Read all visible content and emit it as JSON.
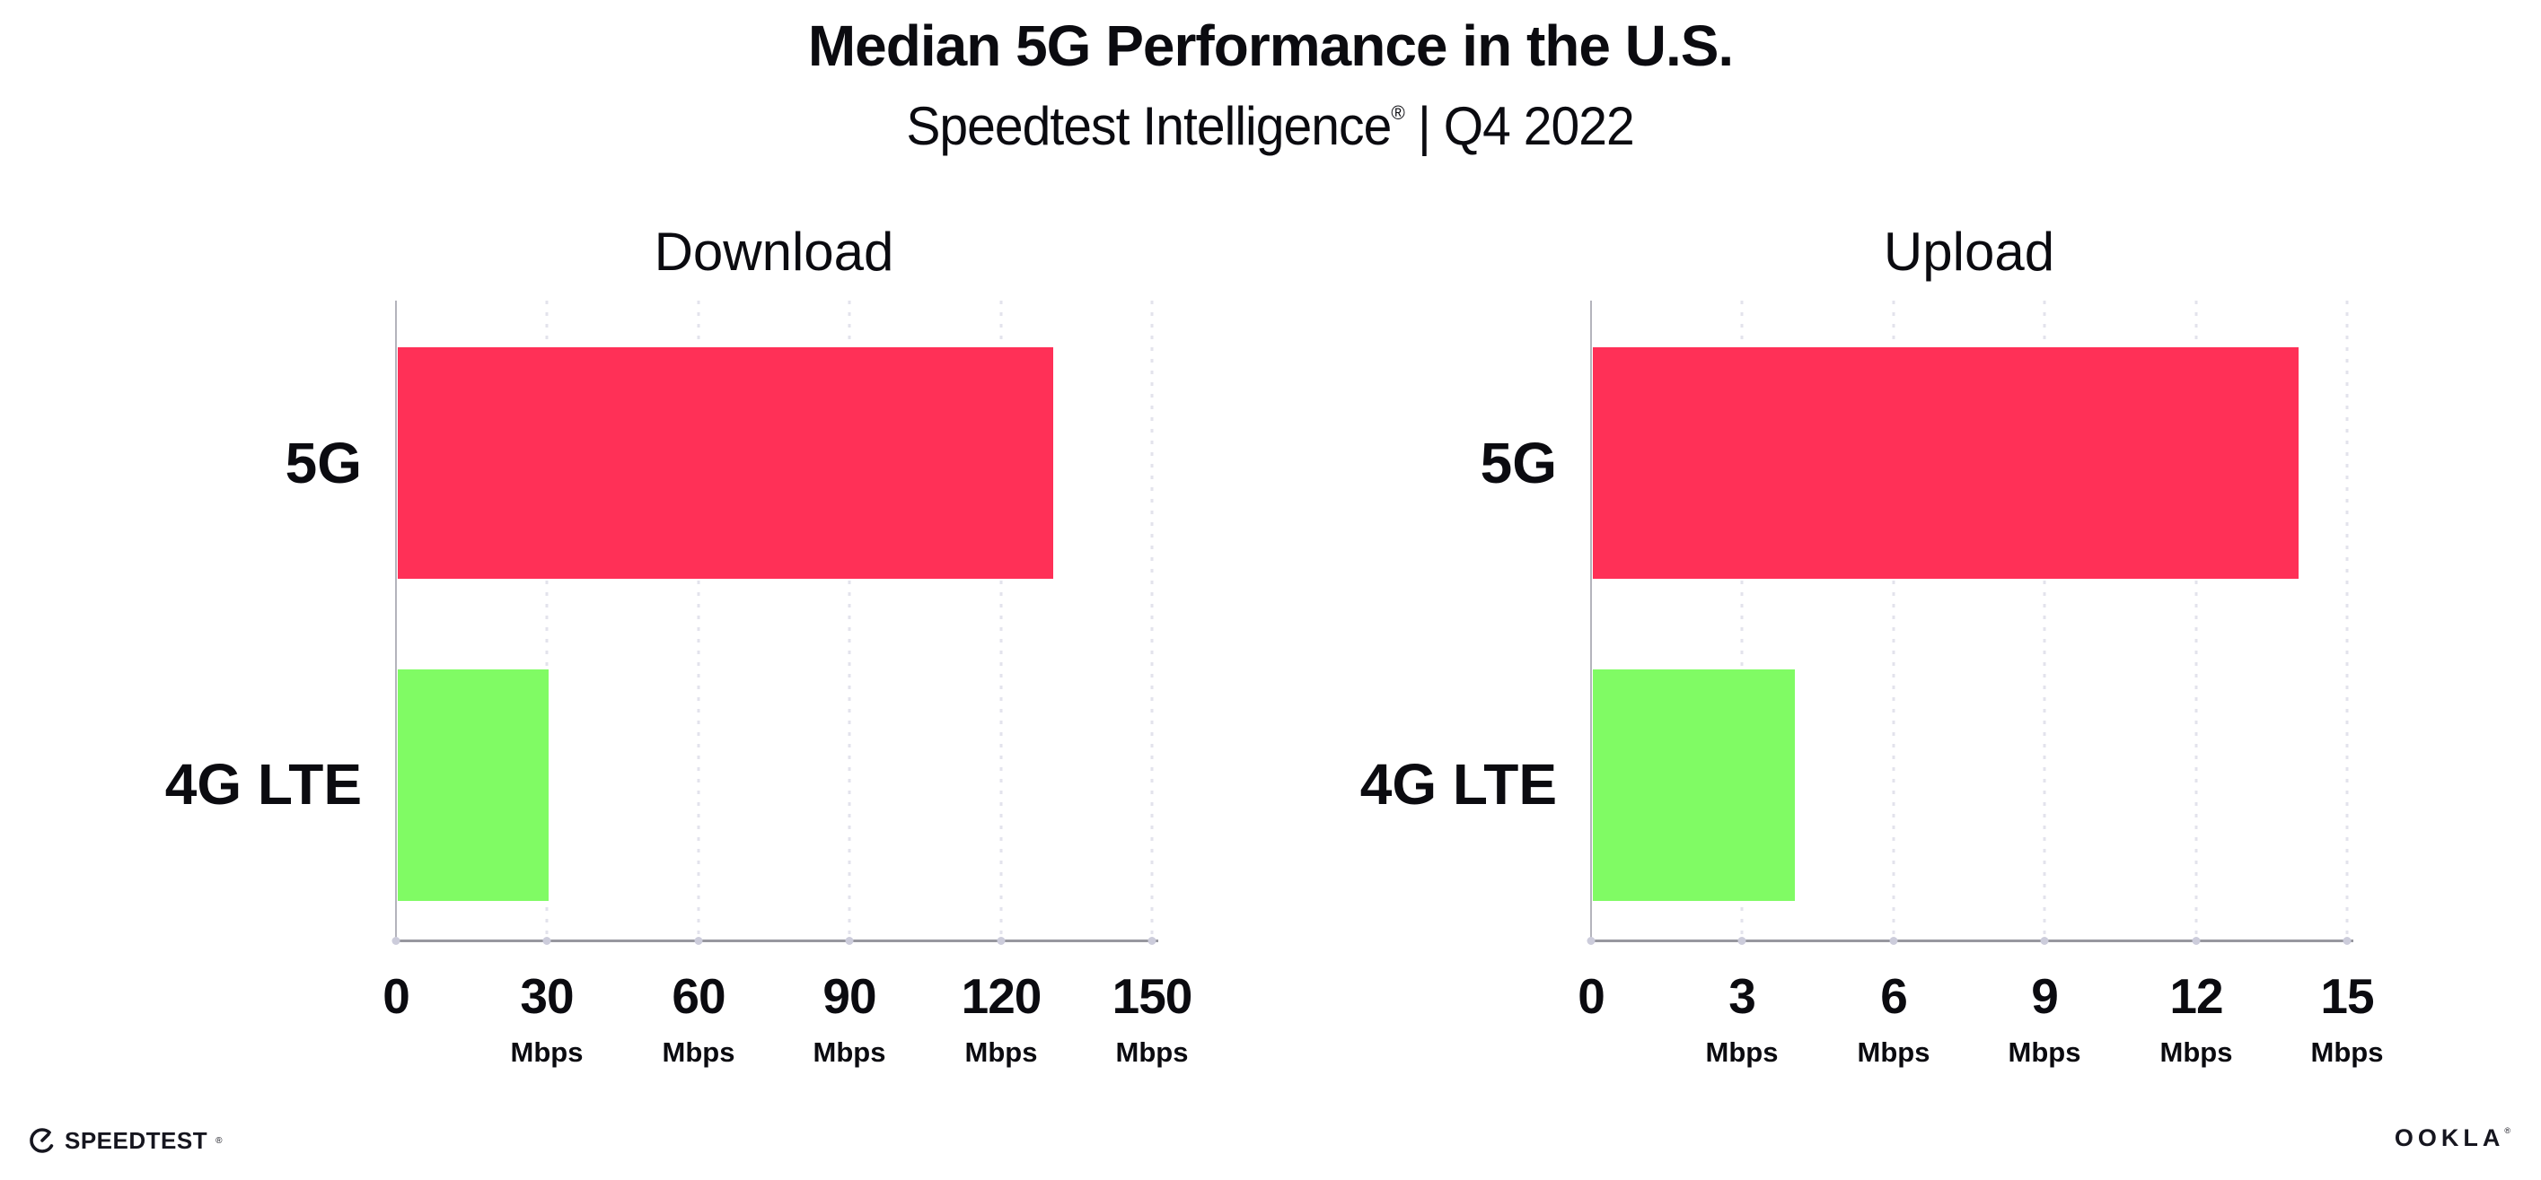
{
  "header": {
    "title": "Median 5G Performance in the U.S.",
    "subtitle_brand": "Speedtest Intelligence",
    "subtitle_reg": "®",
    "subtitle_period": "| Q4 2022"
  },
  "chart_data": [
    {
      "type": "bar",
      "orientation": "horizontal",
      "title": "Download",
      "categories": [
        "5G",
        "4G LTE"
      ],
      "values": [
        130,
        30
      ],
      "unit": "Mbps",
      "xlabel": "Mbps",
      "xlim": [
        0,
        150
      ],
      "xticks": [
        0,
        30,
        60,
        90,
        120,
        150
      ],
      "bar_colors": [
        "#FF3057",
        "#80FB64"
      ],
      "grid": "dotted-vertical",
      "legend": "none"
    },
    {
      "type": "bar",
      "orientation": "horizontal",
      "title": "Upload",
      "categories": [
        "5G",
        "4G LTE"
      ],
      "values": [
        14,
        4
      ],
      "unit": "Mbps",
      "xlabel": "Mbps",
      "xlim": [
        0,
        15
      ],
      "xticks": [
        0,
        3,
        6,
        9,
        12,
        15
      ],
      "bar_colors": [
        "#FF3057",
        "#80FB64"
      ],
      "grid": "dotted-vertical",
      "legend": "none"
    }
  ],
  "colors": {
    "bar_5g": "#FF3057",
    "bar_4g_lte": "#80FB64",
    "axis": "#97979f",
    "gridline": "#e3e3ec",
    "text": "#0b0b10"
  },
  "footer": {
    "speedtest_label": "SPEEDTEST",
    "speedtest_mark": "®",
    "speedtest_icon": "gauge-icon",
    "ookla_label": "OOKLA",
    "ookla_mark": "®"
  }
}
